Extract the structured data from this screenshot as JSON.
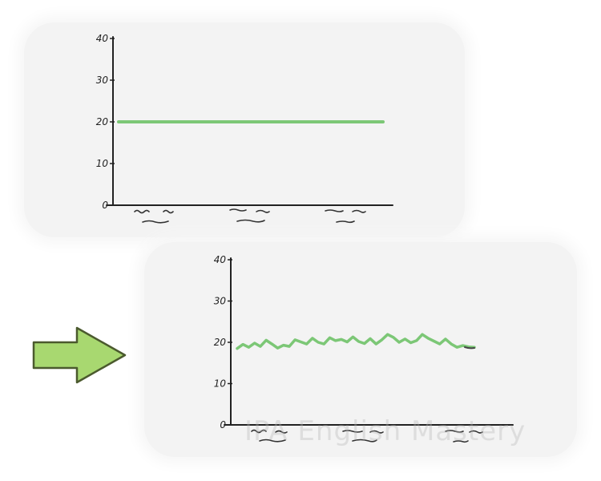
{
  "colors": {
    "panel_background": "#f3f3f3",
    "line": "#7cc776",
    "arrow_fill": "#a8d870",
    "axis": "#222222"
  },
  "arrow": {
    "icon": "right-arrow-icon",
    "direction": "right"
  },
  "watermark": {
    "text": "IPA English Mastery"
  },
  "chart_data": [
    {
      "type": "line",
      "ylim": [
        0,
        40
      ],
      "yticks": [
        "0",
        "10",
        "20",
        "30",
        "40"
      ],
      "x_labels_scribbled": 3,
      "series": [
        {
          "x": [
            0,
            1
          ],
          "values": [
            20,
            20
          ]
        }
      ]
    },
    {
      "type": "line",
      "ylim": [
        0,
        40
      ],
      "yticks": [
        "0",
        "10",
        "20",
        "30",
        "40"
      ],
      "x_labels_scribbled": 3,
      "series": [
        {
          "x": [
            0,
            1,
            2,
            3,
            4,
            5,
            6,
            7,
            8,
            9,
            10,
            11,
            12,
            13,
            14,
            15,
            16,
            17,
            18,
            19,
            20,
            21,
            22,
            23,
            24,
            25,
            26,
            27,
            28,
            29,
            30,
            31,
            32,
            33,
            34,
            35,
            36,
            37,
            38,
            39,
            40,
            41
          ],
          "values": [
            18.5,
            19.5,
            18.8,
            19.8,
            19.0,
            20.5,
            19.6,
            18.6,
            19.3,
            19.0,
            20.6,
            20.1,
            19.6,
            21.0,
            20.0,
            19.6,
            21.1,
            20.4,
            20.7,
            20.1,
            21.3,
            20.2,
            19.7,
            20.9,
            19.6,
            20.6,
            21.9,
            21.2,
            20.0,
            20.8,
            19.9,
            20.4,
            21.9,
            21.0,
            20.3,
            19.6,
            20.8,
            19.6,
            18.8,
            19.2,
            18.9,
            18.8
          ]
        }
      ]
    }
  ]
}
